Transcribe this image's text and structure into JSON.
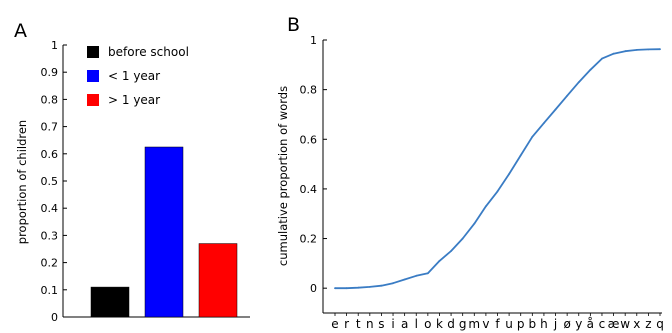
{
  "chart_data": [
    {
      "type": "bar",
      "panel_label": "A",
      "ylabel": "proportion of children",
      "ylim": [
        0,
        1
      ],
      "yticks": [
        "0",
        "0.1",
        "0.2",
        "0.3",
        "0.4",
        "0.5",
        "0.6",
        "0.7",
        "0.8",
        "0.9",
        "1"
      ],
      "series": [
        {
          "name": "before school",
          "value": 0.11,
          "color": "#000000"
        },
        {
          "name": "< 1 year",
          "value": 0.625,
          "color": "#0000ff"
        },
        {
          "name": "> 1 year",
          "value": 0.27,
          "color": "#ff0000"
        }
      ],
      "legend": "top-left"
    },
    {
      "type": "line",
      "panel_label": "B",
      "ylabel": "cumulative proportion of words",
      "ylim": [
        -0.1,
        1
      ],
      "yticks": [
        "0",
        "0.2",
        "0.4",
        "0.6",
        "0.8",
        "1"
      ],
      "x": [
        "e",
        "r",
        "t",
        "n",
        "s",
        "i",
        "a",
        "l",
        "o",
        "k",
        "d",
        "g",
        "m",
        "v",
        "f",
        "u",
        "p",
        "b",
        "h",
        "j",
        "ø",
        "y",
        "å",
        "c",
        "æ",
        "w",
        "x",
        "z",
        "q"
      ],
      "y": [
        0.0,
        0.0,
        0.002,
        0.005,
        0.01,
        0.02,
        0.035,
        0.05,
        0.06,
        0.11,
        0.15,
        0.2,
        0.26,
        0.33,
        0.39,
        0.46,
        0.535,
        0.61,
        0.665,
        0.72,
        0.775,
        0.83,
        0.88,
        0.925,
        0.945,
        0.955,
        0.96,
        0.962,
        0.963
      ],
      "line_color": "#3a7cc4",
      "xlabel": ""
    }
  ]
}
